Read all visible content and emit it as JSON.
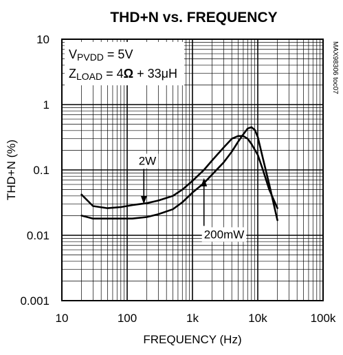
{
  "chart_data": {
    "type": "line",
    "title": "THD+N vs. FREQUENCY",
    "xlabel": "FREQUENCY (Hz)",
    "ylabel": "THD+N (%)",
    "x_scale": "log",
    "y_scale": "log",
    "xlim": [
      10,
      100000
    ],
    "ylim": [
      0.001,
      10
    ],
    "x_ticks": [
      {
        "value": 10,
        "label": "10"
      },
      {
        "value": 100,
        "label": "100"
      },
      {
        "value": 1000,
        "label": "1k"
      },
      {
        "value": 10000,
        "label": "10k"
      },
      {
        "value": 100000,
        "label": "100k"
      }
    ],
    "y_ticks": [
      {
        "value": 10,
        "label": "10"
      },
      {
        "value": 1,
        "label": "1"
      },
      {
        "value": 0.1,
        "label": "0.1"
      },
      {
        "value": 0.01,
        "label": "0.01"
      },
      {
        "value": 0.001,
        "label": "0.001"
      }
    ],
    "grid": true,
    "conditions": {
      "vpvdd_main": "V",
      "vpvdd_sub": "PVDD",
      "vpvdd_value": " = 5V",
      "zload_main": "Z",
      "zload_sub": "LOAD",
      "zload_value_pre": " = 4",
      "zload_omega": "Ω",
      "zload_value_post": " + 33μH"
    },
    "code_label": "MAX98306 toc07",
    "series": [
      {
        "name": "2W",
        "x": [
          20,
          30,
          50,
          80,
          120,
          200,
          300,
          500,
          700,
          1000,
          1500,
          2000,
          3000,
          4000,
          5000,
          6000,
          7000,
          8000,
          10000,
          12000,
          15000,
          20000
        ],
        "y": [
          0.042,
          0.028,
          0.026,
          0.027,
          0.029,
          0.031,
          0.034,
          0.04,
          0.05,
          0.068,
          0.1,
          0.14,
          0.22,
          0.3,
          0.33,
          0.33,
          0.3,
          0.25,
          0.17,
          0.1,
          0.05,
          0.026
        ]
      },
      {
        "name": "200mW",
        "x": [
          20,
          30,
          50,
          80,
          120,
          200,
          300,
          500,
          700,
          1000,
          1500,
          2000,
          3000,
          4000,
          5000,
          6000,
          7000,
          8000,
          9000,
          10000,
          12000,
          15000,
          20000
        ],
        "y": [
          0.02,
          0.018,
          0.018,
          0.018,
          0.018,
          0.019,
          0.021,
          0.025,
          0.032,
          0.045,
          0.063,
          0.085,
          0.13,
          0.19,
          0.27,
          0.35,
          0.43,
          0.45,
          0.41,
          0.32,
          0.15,
          0.06,
          0.017
        ]
      }
    ],
    "annotations": [
      {
        "text": "2W",
        "x": 150,
        "y": 0.12,
        "arrow_to_x": 180,
        "arrow_to_y": 0.03
      },
      {
        "text": "200mW",
        "x": 1500,
        "y": 0.009,
        "arrow_to_x": 1500,
        "arrow_to_y": 0.075
      }
    ]
  }
}
